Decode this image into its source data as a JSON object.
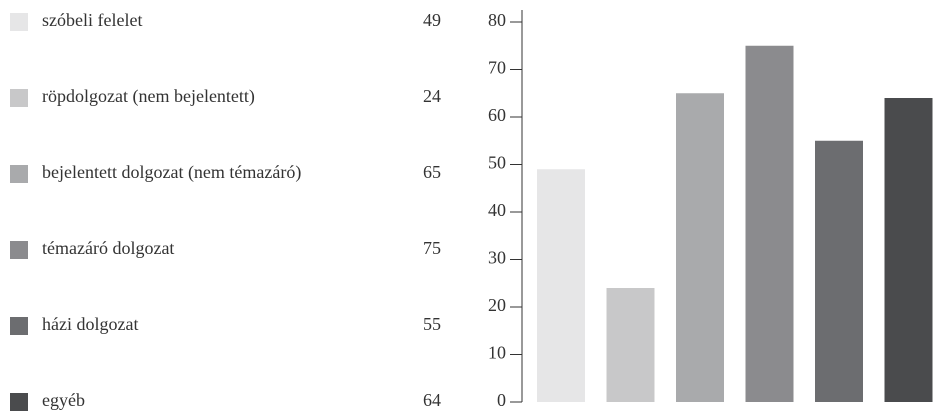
{
  "chart_data": {
    "type": "bar",
    "categories": [
      "szóbeli felelet",
      "röpdolgozat (nem bejelentett)",
      "bejelentett dolgozat (nem témazáró)",
      "témazáró dolgozat",
      "házi dolgozat",
      "egyéb"
    ],
    "values": [
      49,
      24,
      65,
      75,
      55,
      64
    ],
    "colors": [
      "#e6e6e7",
      "#c8c8c9",
      "#a9aaac",
      "#8b8b8e",
      "#6c6d70",
      "#4a4b4d"
    ],
    "ylim": [
      0,
      80
    ],
    "yticks": [
      0,
      10,
      20,
      30,
      40,
      50,
      60,
      70,
      80
    ],
    "grid": false
  }
}
